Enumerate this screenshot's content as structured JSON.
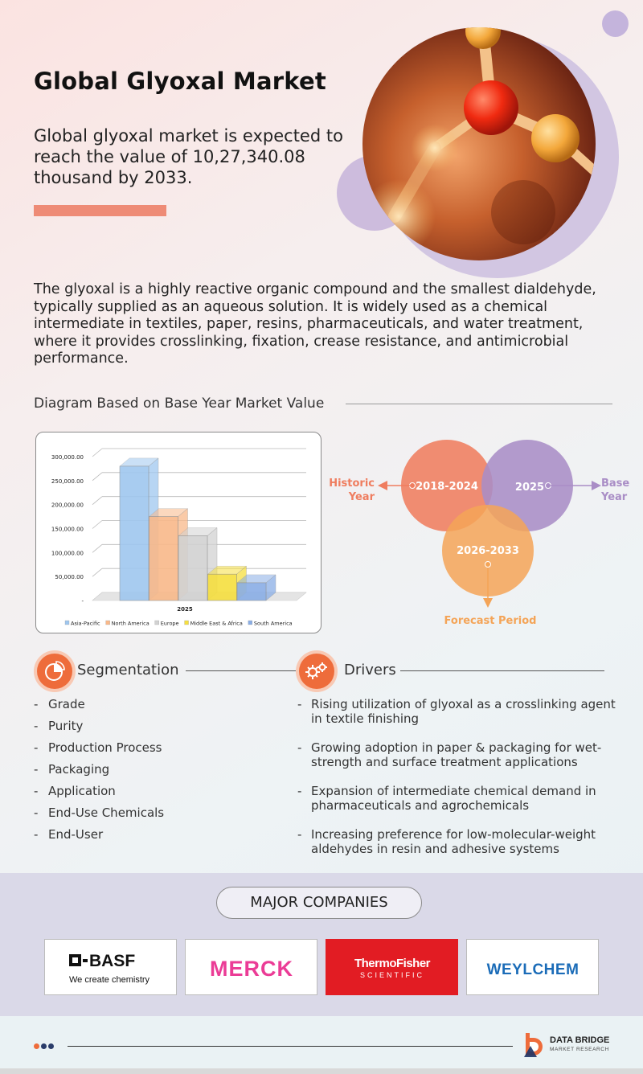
{
  "header": {
    "title": "Global Glyoxal Market",
    "subtitle": "Global glyoxal market is expected to reach the value of 10,27,340.08 thousand by 2033."
  },
  "description": "The glyoxal is a highly reactive organic compound and the smallest dialdehyde, typically supplied as an aqueous solution. It is widely used as a chemical intermediate in textiles, paper, resins, pharmaceuticals, and water treatment, where it provides crosslinking, fixation, crease resistance, and antimicrobial performance.",
  "diagram": {
    "heading": "Diagram Based on Base Year Market Value"
  },
  "chart_data": {
    "type": "bar",
    "categories": [
      "2025"
    ],
    "series": [
      {
        "name": "Asia-Pacific",
        "values": [
          280000
        ],
        "color": "#9fc7ef"
      },
      {
        "name": "North America",
        "values": [
          175000
        ],
        "color": "#f9b98a"
      },
      {
        "name": "Europe",
        "values": [
          135000
        ],
        "color": "#d2d2d2"
      },
      {
        "name": "Middle East & Africa",
        "values": [
          55000
        ],
        "color": "#f6df3f"
      },
      {
        "name": "South America",
        "values": [
          37000
        ],
        "color": "#8aaee6"
      }
    ],
    "yticks": [
      "300,000.00",
      "250,000.00",
      "200,000.00",
      "150,000.00",
      "100,000.00",
      "50,000.00",
      "-"
    ],
    "ylim": [
      0,
      300000
    ],
    "xlabel": "2025",
    "legend_position": "bottom",
    "grid": true
  },
  "venn": {
    "historic": {
      "period": "2018-2024",
      "label": "Historic Year",
      "color": "#ef7d5f"
    },
    "base": {
      "period": "2025",
      "label": "Base Year",
      "color": "#a98dc6"
    },
    "forecast": {
      "period": "2026-2033",
      "label": "Forecast Period",
      "color": "#f4a457"
    }
  },
  "segmentation": {
    "title": "Segmentation",
    "items": [
      "Grade",
      "Purity",
      "Production Process",
      "Packaging",
      "Application",
      "End-Use Chemicals",
      "End-User"
    ]
  },
  "drivers": {
    "title": "Drivers",
    "items": [
      "Rising utilization of glyoxal as a crosslinking agent in textile finishing",
      "Growing adoption in paper & packaging for wet-strength and surface treatment applications",
      "Expansion of intermediate chemical demand in pharmaceuticals and agrochemicals",
      "Increasing preference for low-molecular-weight aldehydes in resin and adhesive systems"
    ]
  },
  "companies": {
    "heading": "MAJOR COMPANIES",
    "basf": {
      "name": "BASF",
      "tagline": "We create chemistry"
    },
    "merck": {
      "name": "MERCK"
    },
    "thermo": {
      "line1": "ThermoFisher",
      "line2": "SCIENTIFIC"
    },
    "weylchem": {
      "name": "WEYLCHEM"
    }
  },
  "footer": {
    "brand_line1": "DATA BRIDGE",
    "brand_line2": "MARKET RESEARCH",
    "dot_colors": [
      "#ee6c3b",
      "#2a3c6a",
      "#2a3c6a"
    ]
  },
  "colors": {
    "accent": "#ee8b76",
    "icon_orange": "#ee6c3b",
    "thermo_red": "#e21c23",
    "merck_pink": "#eb3c96",
    "weylchem_blue": "#1b6cb8"
  }
}
